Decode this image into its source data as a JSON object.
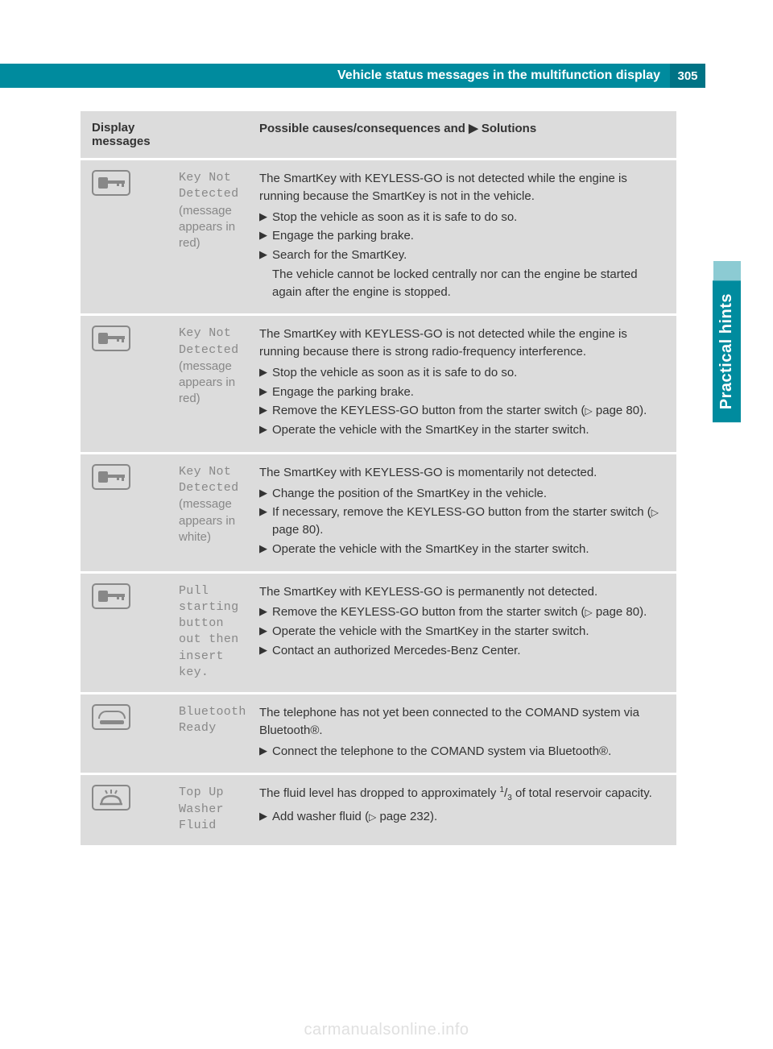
{
  "header": {
    "title": "Vehicle status messages in the multifunction display",
    "page_number": "305"
  },
  "side_tab": "Practical hints",
  "watermark": "carmanualsonline.info",
  "table": {
    "header_col1": "Display messages",
    "header_col3_prefix": "Possible causes/consequences and ",
    "header_col3_suffix": " Solutions",
    "rows": [
      {
        "icon": "key",
        "msg_mono": "Key Not Detected",
        "msg_note": "(message appears in red)",
        "intro": "The SmartKey with KEYLESS-GO is not detected while the engine is running because the SmartKey is not in the vehicle.",
        "bullets": [
          "Stop the vehicle as soon as it is safe to do so.",
          "Engage the parking brake.",
          "Search for the SmartKey."
        ],
        "tail": "The vehicle cannot be locked centrally nor can the engine be started again after the engine is stopped."
      },
      {
        "icon": "key",
        "msg_mono": "Key Not Detected",
        "msg_note": "(message appears in red)",
        "intro": "The SmartKey with KEYLESS-GO is not detected while the engine is running because there is strong radio-frequency interference.",
        "bullets": [
          "Stop the vehicle as soon as it is safe to do so.",
          "Engage the parking brake.",
          "Remove the KEYLESS-GO button from the starter switch (▷ page 80).",
          "Operate the vehicle with the SmartKey in the starter switch."
        ]
      },
      {
        "icon": "key",
        "msg_mono": "Key Not Detected",
        "msg_note": "(message appears in white)",
        "intro": "The SmartKey with KEYLESS-GO is momentarily not detected.",
        "bullets": [
          "Change the position of the SmartKey in the vehicle.",
          "If necessary, remove the KEYLESS-GO button from the starter switch (▷ page 80).",
          "Operate the vehicle with the SmartKey in the starter switch."
        ]
      },
      {
        "icon": "key",
        "msg_mono": "Pull starting button out then insert key.",
        "msg_note": "",
        "intro": "The SmartKey with KEYLESS-GO is permanently not detected.",
        "bullets": [
          "Remove the KEYLESS-GO button from the starter switch (▷ page 80).",
          "Operate the vehicle with the SmartKey in the starter switch.",
          "Contact an authorized Mercedes-Benz Center."
        ]
      },
      {
        "icon": "phone",
        "msg_mono": "Bluetooth Ready",
        "msg_note": "",
        "intro": "The telephone has not yet been connected to the COMAND system via Bluetooth®.",
        "bullets": [
          "Connect the telephone to the COMAND system via Bluetooth®."
        ]
      },
      {
        "icon": "washer",
        "msg_mono": "Top Up Washer Fluid",
        "msg_note": "",
        "intro_frac": "The fluid level has dropped to approximately ¹/₃ of total reservoir capacity.",
        "bullets": [
          "Add washer fluid (▷ page 232)."
        ]
      }
    ]
  }
}
